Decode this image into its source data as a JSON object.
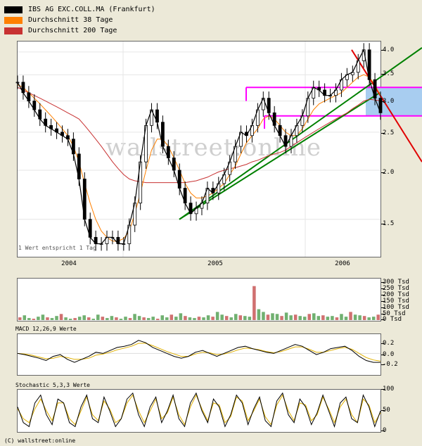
{
  "legend": [
    {
      "label": "IBS AG EXC.COLL.MA (Frankfurt)",
      "color": "#000000"
    },
    {
      "label": "Durchschnitt 38 Tage",
      "color": "#ff8000"
    },
    {
      "label": "Durchschnitt 200 Tage",
      "color": "#c83232"
    }
  ],
  "main_note": "1 Wert entspricht 1 Tag",
  "watermark": "wallstreet:online",
  "footer": "(C) wallstreet:online",
  "macd_title": "MACD 12,26,9 Werte",
  "stoch_title": "Stochastic 5,3,3 Werte",
  "chart_data": [
    {
      "type": "line",
      "name": "price",
      "x_ticks": [
        "2004",
        "2005",
        "2006"
      ],
      "y_ticks": [
        "4.0",
        "3.5",
        "3.0",
        "2.5",
        "2.0",
        "1.5"
      ],
      "y_scale": "log",
      "ylim": [
        1.25,
        4.2
      ],
      "series": [
        {
          "name": "IBS AG EXC.COLL.MA (Frankfurt)",
          "color": "#000000",
          "values": [
            3.35,
            3.15,
            3.0,
            2.85,
            2.7,
            2.6,
            2.55,
            2.5,
            2.45,
            2.4,
            2.2,
            1.9,
            1.5,
            1.35,
            1.3,
            1.3,
            1.35,
            1.35,
            1.3,
            1.3,
            1.45,
            1.65,
            2.1,
            2.6,
            2.85,
            2.65,
            2.3,
            2.15,
            2.0,
            1.8,
            1.65,
            1.55,
            1.6,
            1.65,
            1.8,
            1.75,
            1.85,
            1.95,
            2.1,
            2.3,
            2.5,
            2.45,
            2.6,
            2.85,
            3.05,
            2.8,
            2.6,
            2.45,
            2.3,
            2.45,
            2.6,
            2.75,
            3.05,
            3.25,
            3.2,
            3.1,
            3.1,
            3.2,
            3.4,
            3.5,
            3.55,
            3.8,
            4.05,
            3.4,
            3.05,
            2.8
          ]
        },
        {
          "name": "Durchschnitt 38 Tage",
          "color": "#ff8000",
          "values": [
            3.3,
            3.25,
            3.15,
            3.05,
            2.95,
            2.85,
            2.75,
            2.65,
            2.55,
            2.45,
            2.3,
            2.1,
            1.85,
            1.65,
            1.5,
            1.4,
            1.35,
            1.32,
            1.32,
            1.34,
            1.4,
            1.55,
            1.75,
            2.0,
            2.25,
            2.4,
            2.4,
            2.3,
            2.15,
            2.0,
            1.85,
            1.75,
            1.7,
            1.7,
            1.72,
            1.75,
            1.8,
            1.85,
            1.95,
            2.05,
            2.2,
            2.35,
            2.45,
            2.55,
            2.7,
            2.75,
            2.7,
            2.6,
            2.5,
            2.45,
            2.45,
            2.55,
            2.7,
            2.85,
            2.95,
            3.0,
            3.05,
            3.1,
            3.15,
            3.25,
            3.35,
            3.45,
            3.5,
            3.45,
            3.3,
            3.1
          ]
        },
        {
          "name": "Durchschnitt 200 Tage",
          "color": "#c83232",
          "values": [
            3.25,
            3.2,
            3.15,
            3.1,
            3.05,
            3.0,
            2.95,
            2.9,
            2.85,
            2.8,
            2.75,
            2.7,
            2.6,
            2.5,
            2.4,
            2.3,
            2.2,
            2.1,
            2.02,
            1.95,
            1.9,
            1.88,
            1.87,
            1.86,
            1.86,
            1.86,
            1.86,
            1.86,
            1.86,
            1.86,
            1.86,
            1.87,
            1.88,
            1.9,
            1.92,
            1.95,
            1.98,
            2.0,
            2.02,
            2.03,
            2.05,
            2.07,
            2.1,
            2.12,
            2.15,
            2.18,
            2.2,
            2.22,
            2.25,
            2.3,
            2.35,
            2.4,
            2.45,
            2.5,
            2.55,
            2.6,
            2.65,
            2.7,
            2.75,
            2.8,
            2.87,
            2.93,
            3.0,
            3.03,
            3.02,
            3.0
          ]
        }
      ]
    },
    {
      "type": "bar",
      "name": "volume",
      "y_ticks": [
        "300 Tsd",
        "250 Tsd",
        "200 Tsd",
        "150 Tsd",
        "100 Tsd",
        "50 Tsd",
        "0 Tsd"
      ],
      "ylim": [
        0,
        300
      ],
      "values": [
        20,
        35,
        15,
        10,
        25,
        40,
        20,
        15,
        30,
        45,
        20,
        10,
        15,
        25,
        35,
        20,
        10,
        40,
        25,
        15,
        30,
        20,
        10,
        25,
        15,
        45,
        30,
        20,
        15,
        25,
        10,
        35,
        20,
        40,
        25,
        50,
        30,
        20,
        15,
        25,
        20,
        35,
        25,
        60,
        40,
        30,
        20,
        45,
        35,
        30,
        25,
        250,
        80,
        60,
        40,
        50,
        45,
        30,
        55,
        35,
        40,
        30,
        25,
        45,
        50,
        30,
        35,
        25,
        30,
        20,
        45,
        25,
        60,
        40,
        35,
        30,
        20,
        25,
        40
      ]
    },
    {
      "type": "line",
      "name": "macd",
      "y_ticks": [
        "0.2",
        "0.0",
        "-0.2"
      ],
      "ylim": [
        -0.35,
        0.3
      ],
      "series": [
        {
          "name": "MACD",
          "color": "#000000",
          "values": [
            0.0,
            -0.02,
            -0.05,
            -0.08,
            -0.12,
            -0.05,
            -0.02,
            -0.1,
            -0.15,
            -0.1,
            -0.05,
            0.02,
            0.0,
            0.05,
            0.1,
            0.12,
            0.15,
            0.22,
            0.18,
            0.1,
            0.05,
            0.0,
            -0.05,
            -0.08,
            -0.05,
            0.02,
            0.05,
            0.0,
            -0.05,
            0.0,
            0.05,
            0.1,
            0.12,
            0.08,
            0.05,
            0.02,
            0.0,
            0.05,
            0.1,
            0.15,
            0.12,
            0.05,
            -0.02,
            0.02,
            0.08,
            0.1,
            0.12,
            0.05,
            -0.05,
            -0.12,
            -0.15,
            -0.15
          ]
        },
        {
          "name": "Signal",
          "color": "#e0b000",
          "values": [
            0.0,
            -0.01,
            -0.03,
            -0.06,
            -0.09,
            -0.08,
            -0.05,
            -0.07,
            -0.1,
            -0.1,
            -0.08,
            -0.03,
            -0.01,
            0.02,
            0.06,
            0.09,
            0.12,
            0.17,
            0.17,
            0.13,
            0.08,
            0.03,
            -0.01,
            -0.05,
            -0.05,
            -0.01,
            0.02,
            0.01,
            -0.02,
            -0.01,
            0.02,
            0.06,
            0.09,
            0.08,
            0.06,
            0.03,
            0.01,
            0.03,
            0.07,
            0.11,
            0.11,
            0.07,
            0.02,
            0.02,
            0.05,
            0.08,
            0.1,
            0.07,
            0.0,
            -0.07,
            -0.11,
            -0.13
          ]
        }
      ]
    },
    {
      "type": "line",
      "name": "stochastic",
      "y_ticks": [
        "100",
        "50",
        "0"
      ],
      "ylim": [
        0,
        100
      ],
      "series": [
        {
          "name": "%K",
          "color": "#000000",
          "values": [
            60,
            20,
            10,
            70,
            90,
            40,
            15,
            80,
            70,
            20,
            10,
            60,
            90,
            30,
            20,
            85,
            50,
            10,
            30,
            80,
            95,
            40,
            10,
            60,
            85,
            20,
            50,
            90,
            30,
            10,
            70,
            95,
            50,
            20,
            80,
            60,
            10,
            40,
            90,
            70,
            15,
            55,
            85,
            25,
            10,
            75,
            95,
            40,
            20,
            80,
            60,
            15,
            45,
            90,
            50,
            10,
            70,
            85,
            30,
            20,
            90,
            60,
            10,
            50
          ]
        },
        {
          "name": "%D",
          "color": "#e0b000",
          "values": [
            55,
            30,
            20,
            55,
            80,
            50,
            25,
            70,
            70,
            30,
            15,
            50,
            85,
            40,
            25,
            75,
            55,
            20,
            30,
            70,
            90,
            50,
            20,
            50,
            80,
            30,
            45,
            85,
            40,
            15,
            60,
            90,
            55,
            25,
            70,
            65,
            20,
            35,
            85,
            75,
            25,
            50,
            80,
            35,
            15,
            65,
            90,
            50,
            25,
            70,
            65,
            25,
            40,
            85,
            55,
            20,
            60,
            80,
            40,
            20,
            80,
            65,
            20,
            45
          ]
        }
      ]
    }
  ]
}
